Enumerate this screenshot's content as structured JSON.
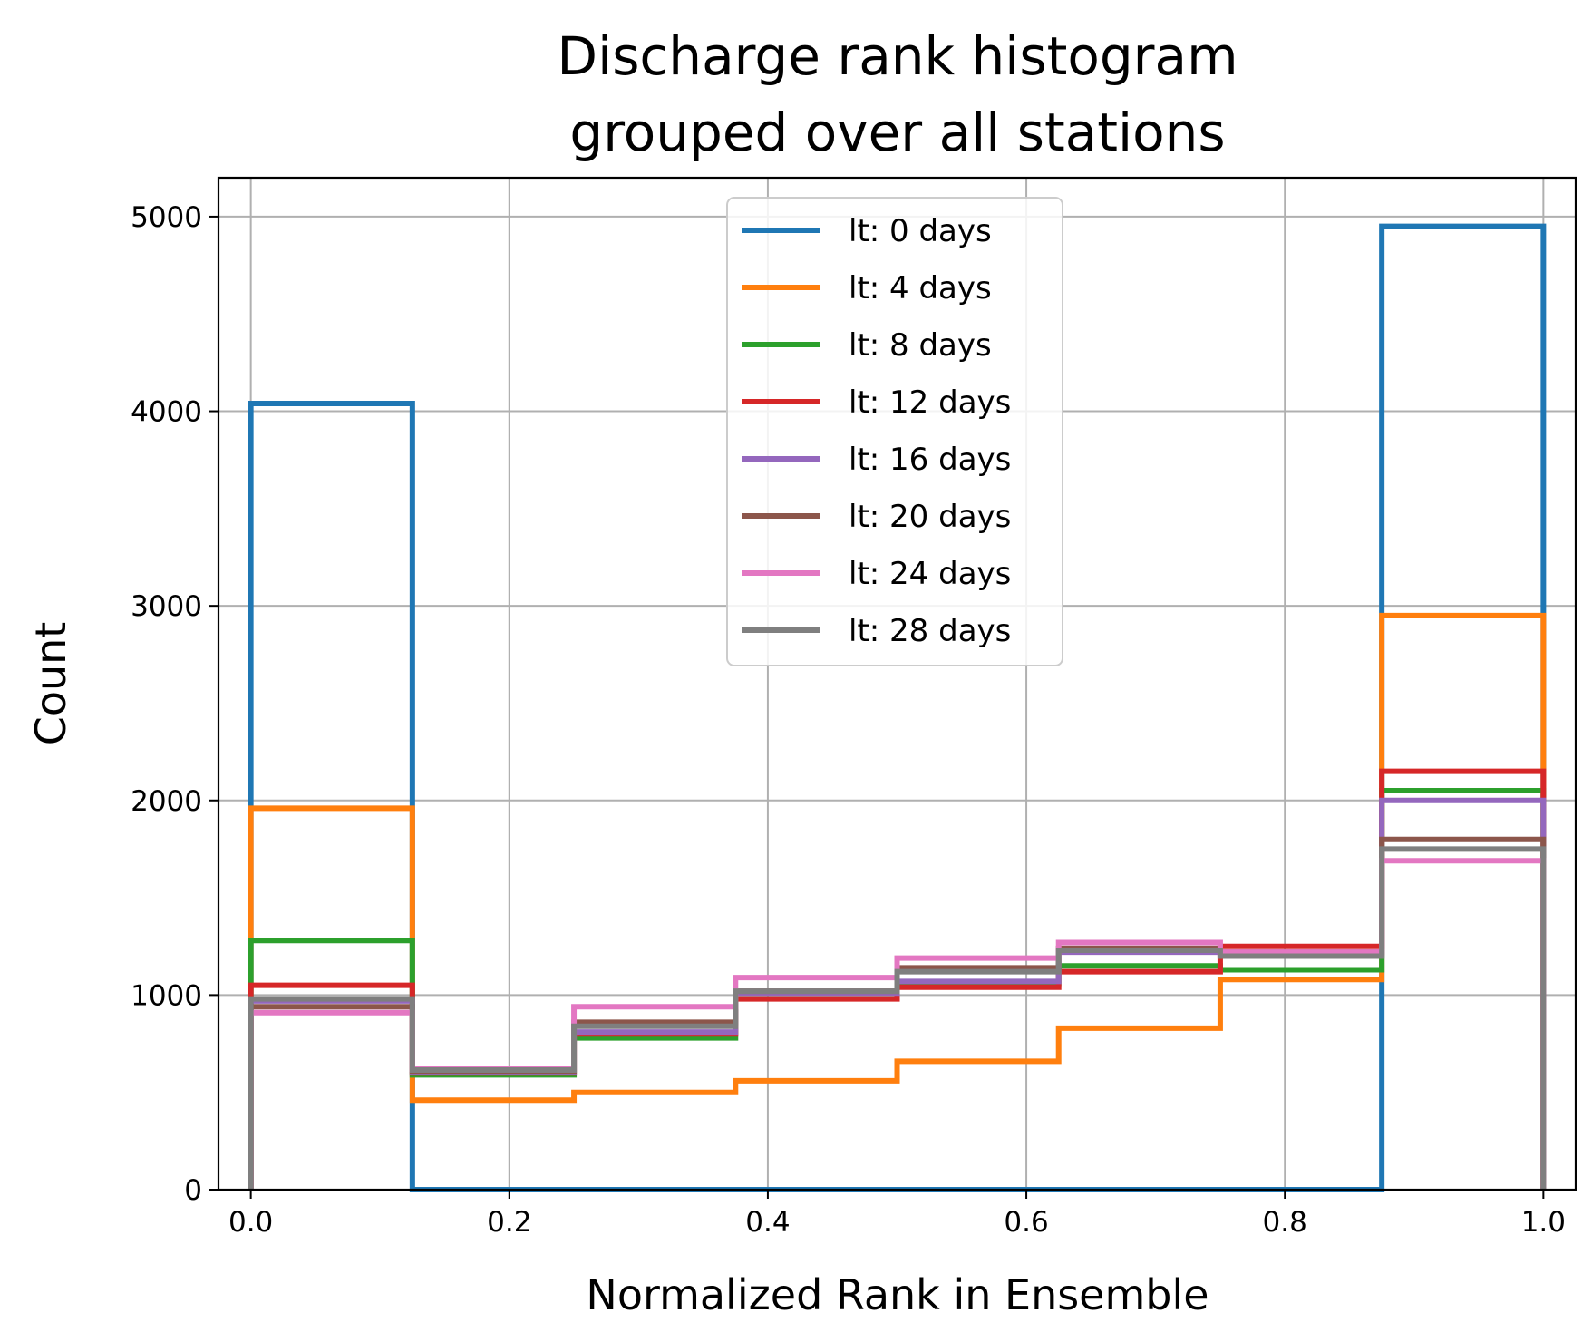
{
  "chart_data": {
    "type": "histogram-step",
    "title_lines": [
      "Discharge rank histogram",
      "grouped over all stations"
    ],
    "xlabel": "Normalized Rank in Ensemble",
    "ylabel": "Count",
    "xlim": [
      -0.025,
      1.025
    ],
    "ylim": [
      0,
      5200
    ],
    "xticks": [
      0.0,
      0.2,
      0.4,
      0.6,
      0.8,
      1.0
    ],
    "xtick_labels": [
      "0.0",
      "0.2",
      "0.4",
      "0.6",
      "0.8",
      "1.0"
    ],
    "yticks": [
      0,
      1000,
      2000,
      3000,
      4000,
      5000
    ],
    "ytick_labels": [
      "0",
      "1000",
      "2000",
      "3000",
      "4000",
      "5000"
    ],
    "grid": true,
    "legend_position": "upper center",
    "bin_edges": [
      0.0,
      0.125,
      0.25,
      0.375,
      0.5,
      0.625,
      0.75,
      0.875,
      1.0
    ],
    "series": [
      {
        "name": "lt: 0 days",
        "color": "#1f77b4",
        "values": [
          4040,
          0,
          0,
          0,
          0,
          0,
          0,
          4950
        ]
      },
      {
        "name": "lt: 4 days",
        "color": "#ff7f0e",
        "values": [
          1960,
          460,
          500,
          560,
          660,
          830,
          1080,
          2950
        ]
      },
      {
        "name": "lt: 8 days",
        "color": "#2ca02c",
        "values": [
          1280,
          590,
          780,
          1010,
          1060,
          1150,
          1130,
          2050
        ]
      },
      {
        "name": "lt: 12 days",
        "color": "#d62728",
        "values": [
          1050,
          600,
          800,
          980,
          1040,
          1120,
          1250,
          2150
        ]
      },
      {
        "name": "lt: 16 days",
        "color": "#9467bd",
        "values": [
          970,
          605,
          810,
          1010,
          1070,
          1220,
          1210,
          2000
        ]
      },
      {
        "name": "lt: 20 days",
        "color": "#8c564b",
        "values": [
          940,
          610,
          860,
          1020,
          1140,
          1240,
          1220,
          1800
        ]
      },
      {
        "name": "lt: 24 days",
        "color": "#e377c2",
        "values": [
          910,
          620,
          940,
          1090,
          1190,
          1270,
          1220,
          1690
        ]
      },
      {
        "name": "lt: 28 days",
        "color": "#7f7f7f",
        "values": [
          980,
          615,
          840,
          1020,
          1120,
          1230,
          1200,
          1750
        ]
      }
    ]
  }
}
